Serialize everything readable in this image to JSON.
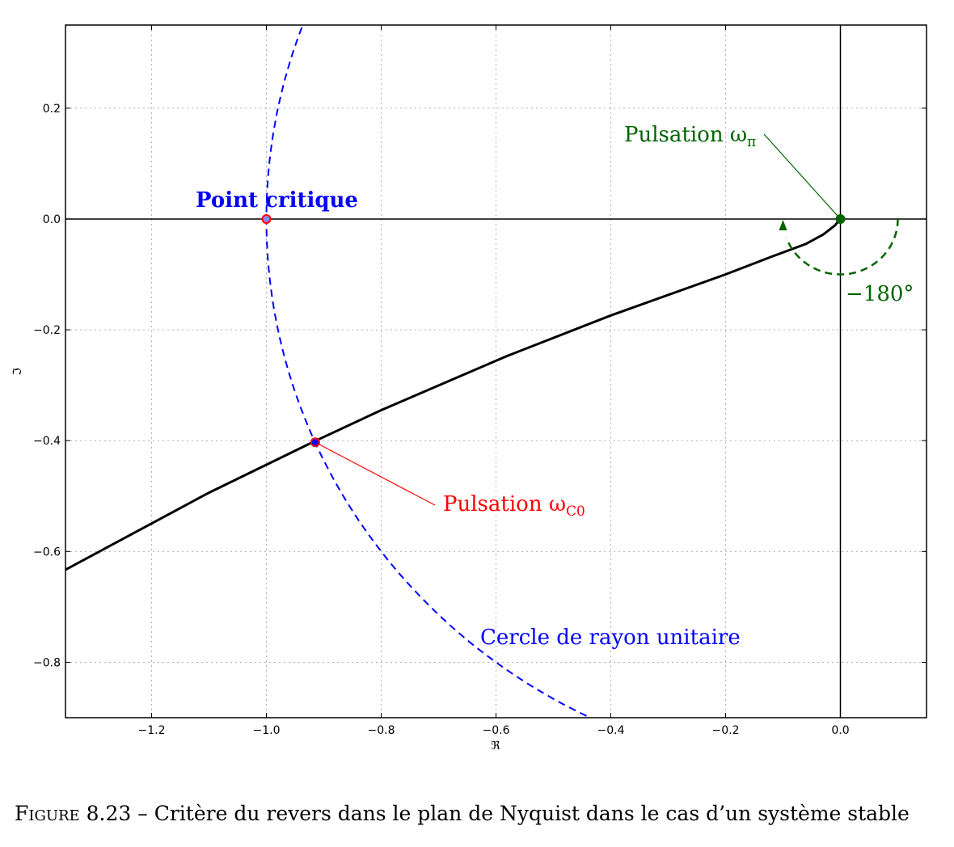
{
  "chart_data": {
    "type": "line",
    "xlabel": "ℜ",
    "ylabel": "ℑ",
    "xlim": [
      -1.35,
      0.15
    ],
    "ylim": [
      -0.9,
      0.35
    ],
    "grid": true,
    "x_ticks": [
      -1.2,
      -1.0,
      -0.8,
      -0.6,
      -0.4,
      -0.2,
      0.0
    ],
    "x_tick_labels": [
      "−1.2",
      "−1.0",
      "−0.8",
      "−0.6",
      "−0.4",
      "−0.2",
      "0.0"
    ],
    "y_ticks": [
      0.2,
      0.0,
      -0.2,
      -0.4,
      -0.6,
      -0.8
    ],
    "y_tick_labels": [
      "0.2",
      "0.0",
      "−0.2",
      "−0.4",
      "−0.6",
      "−0.8"
    ],
    "series": [
      {
        "style": "solid",
        "color": "#000000",
        "x": [
          -1.35,
          -1.1,
          -0.92,
          -0.8,
          -0.58,
          -0.4,
          -0.2,
          -0.12,
          -0.06,
          -0.03,
          -0.01,
          0.0
        ],
        "y": [
          -0.633,
          -0.494,
          -0.403,
          -0.345,
          -0.247,
          -0.174,
          -0.1,
          -0.068,
          -0.045,
          -0.028,
          -0.012,
          0.0
        ]
      },
      {
        "style": "dashed",
        "color": "#0000ff",
        "circle": {
          "center": [
            0,
            0
          ],
          "radius": 1.0
        }
      }
    ],
    "points": [
      {
        "x": -1.0,
        "y": 0.0,
        "color": "#ff0000",
        "fill": "#8888ff"
      },
      {
        "x": -0.915,
        "y": -0.403,
        "color": "#ff0000",
        "fill": "#0000ff"
      },
      {
        "x": 0.0,
        "y": 0.0,
        "color": "#006400",
        "fill": "#006400"
      }
    ],
    "phase_arc": {
      "center": [
        0,
        0
      ],
      "radius": 0.1,
      "color": "#006400"
    },
    "annotations": {
      "point_critique": "Point critique",
      "pulsation_pi": "Pulsation ω",
      "pulsation_pi_sub": "π",
      "pulsation_c0": "Pulsation ω",
      "pulsation_c0_sub": "C0",
      "cercle": "Cercle de rayon unitaire",
      "angle": "−180°"
    }
  },
  "caption": {
    "figure_label": "Figure 8.23",
    "text": " – Critère du revers dans le plan de Nyquist dans le cas d’un système stable"
  }
}
